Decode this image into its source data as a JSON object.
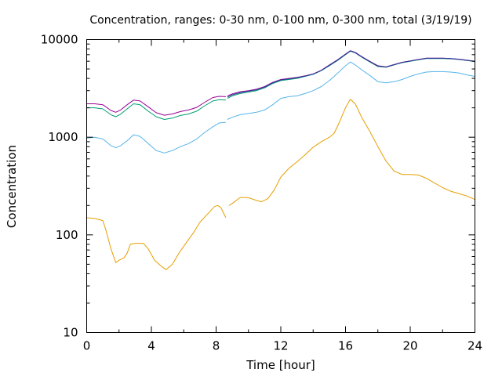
{
  "chart_data": {
    "type": "line",
    "title": "Concentration, ranges: 0-30 nm, 0-100 nm, 0-300 nm, total (3/19/19)",
    "xlabel": "Time [hour]",
    "ylabel": "Concentration",
    "xlim": [
      0,
      24
    ],
    "ylim": [
      10,
      10000
    ],
    "yscale": "log",
    "grid": false,
    "legend": "none",
    "x_ticks": [
      "0",
      "4",
      "8",
      "12",
      "16",
      "20",
      "24"
    ],
    "y_ticks": [
      "10",
      "100",
      "1000",
      "10000"
    ],
    "series": [
      {
        "color": "#e69f00",
        "segments": [
          [
            [
              0,
              150
            ],
            [
              0.5,
              147
            ],
            [
              1,
              140
            ],
            [
              1.2,
              110
            ],
            [
              1.5,
              72
            ],
            [
              1.8,
              52
            ],
            [
              2.0,
              55
            ],
            [
              2.3,
              58
            ],
            [
              2.5,
              65
            ],
            [
              2.7,
              80
            ],
            [
              3.0,
              82
            ],
            [
              3.5,
              82
            ],
            [
              3.8,
              72
            ],
            [
              4.2,
              55
            ],
            [
              4.6,
              48
            ],
            [
              4.9,
              44
            ],
            [
              5.3,
              50
            ],
            [
              5.7,
              65
            ],
            [
              6.2,
              85
            ],
            [
              6.6,
              105
            ],
            [
              7.0,
              135
            ],
            [
              7.5,
              165
            ],
            [
              7.9,
              195
            ],
            [
              8.1,
              200
            ],
            [
              8.3,
              190
            ],
            [
              8.6,
              150
            ]
          ],
          [
            [
              8.8,
              200
            ],
            [
              9.0,
              210
            ],
            [
              9.5,
              242
            ],
            [
              10.0,
              240
            ],
            [
              10.5,
              225
            ],
            [
              10.8,
              218
            ],
            [
              11.2,
              235
            ],
            [
              11.6,
              290
            ],
            [
              12.0,
              390
            ],
            [
              12.5,
              480
            ],
            [
              13.0,
              560
            ],
            [
              13.5,
              660
            ],
            [
              14.0,
              790
            ],
            [
              14.5,
              900
            ],
            [
              15.0,
              1000
            ],
            [
              15.3,
              1100
            ],
            [
              15.6,
              1400
            ],
            [
              16.0,
              2000
            ],
            [
              16.3,
              2450
            ],
            [
              16.6,
              2200
            ],
            [
              17.0,
              1600
            ],
            [
              17.5,
              1150
            ],
            [
              18.0,
              800
            ],
            [
              18.5,
              570
            ],
            [
              19.0,
              450
            ],
            [
              19.5,
              415
            ],
            [
              20.0,
              415
            ],
            [
              20.5,
              410
            ],
            [
              21.0,
              380
            ],
            [
              21.5,
              340
            ],
            [
              22.0,
              305
            ],
            [
              22.5,
              280
            ],
            [
              23.0,
              265
            ],
            [
              23.5,
              250
            ],
            [
              24.0,
              230
            ]
          ]
        ]
      },
      {
        "color": "#56b4e9",
        "segments": [
          [
            [
              0,
              980
            ],
            [
              0.5,
              1000
            ],
            [
              1,
              960
            ],
            [
              1.5,
              820
            ],
            [
              1.8,
              780
            ],
            [
              2.1,
              820
            ],
            [
              2.5,
              920
            ],
            [
              2.9,
              1060
            ],
            [
              3.3,
              1020
            ],
            [
              3.8,
              860
            ],
            [
              4.3,
              730
            ],
            [
              4.8,
              690
            ],
            [
              5.3,
              730
            ],
            [
              5.8,
              800
            ],
            [
              6.3,
              860
            ],
            [
              6.8,
              960
            ],
            [
              7.3,
              1120
            ],
            [
              7.8,
              1280
            ],
            [
              8.2,
              1400
            ],
            [
              8.6,
              1420
            ]
          ],
          [
            [
              8.7,
              1520
            ],
            [
              9.0,
              1600
            ],
            [
              9.5,
              1700
            ],
            [
              10.0,
              1750
            ],
            [
              10.5,
              1800
            ],
            [
              11.0,
              1900
            ],
            [
              11.5,
              2150
            ],
            [
              12.0,
              2500
            ],
            [
              12.5,
              2600
            ],
            [
              13.0,
              2650
            ],
            [
              13.5,
              2800
            ],
            [
              14.0,
              3000
            ],
            [
              14.5,
              3300
            ],
            [
              15.0,
              3800
            ],
            [
              15.5,
              4500
            ],
            [
              16.0,
              5400
            ],
            [
              16.3,
              5900
            ],
            [
              16.6,
              5500
            ],
            [
              17.0,
              4900
            ],
            [
              17.5,
              4300
            ],
            [
              18.0,
              3700
            ],
            [
              18.5,
              3600
            ],
            [
              19.0,
              3700
            ],
            [
              19.5,
              3900
            ],
            [
              20.0,
              4200
            ],
            [
              20.5,
              4450
            ],
            [
              21.0,
              4650
            ],
            [
              21.5,
              4700
            ],
            [
              22.0,
              4700
            ],
            [
              22.5,
              4650
            ],
            [
              23.0,
              4550
            ],
            [
              23.5,
              4350
            ],
            [
              24.0,
              4200
            ]
          ]
        ]
      },
      {
        "color": "#009e73",
        "segments": [
          [
            [
              0,
              2000
            ],
            [
              0.5,
              2000
            ],
            [
              1,
              1950
            ],
            [
              1.5,
              1700
            ],
            [
              1.8,
              1620
            ],
            [
              2.1,
              1720
            ],
            [
              2.5,
              1950
            ],
            [
              2.9,
              2200
            ],
            [
              3.3,
              2150
            ],
            [
              3.8,
              1850
            ],
            [
              4.3,
              1620
            ],
            [
              4.8,
              1520
            ],
            [
              5.3,
              1570
            ],
            [
              5.8,
              1670
            ],
            [
              6.3,
              1730
            ],
            [
              6.8,
              1850
            ],
            [
              7.3,
              2100
            ],
            [
              7.8,
              2350
            ],
            [
              8.2,
              2420
            ],
            [
              8.6,
              2400
            ]
          ],
          [
            [
              8.7,
              2500
            ],
            [
              9.0,
              2650
            ],
            [
              9.5,
              2800
            ],
            [
              10.0,
              2900
            ],
            [
              10.5,
              3000
            ],
            [
              11.0,
              3200
            ],
            [
              11.5,
              3550
            ],
            [
              12.0,
              3800
            ],
            [
              12.5,
              3900
            ],
            [
              13.0,
              4000
            ],
            [
              13.5,
              4200
            ],
            [
              14.0,
              4400
            ],
            [
              14.5,
              4800
            ],
            [
              15.0,
              5400
            ],
            [
              15.5,
              6100
            ],
            [
              16.0,
              7000
            ],
            [
              16.3,
              7600
            ],
            [
              16.6,
              7300
            ],
            [
              17.0,
              6600
            ],
            [
              17.5,
              5900
            ],
            [
              18.0,
              5300
            ],
            [
              18.5,
              5200
            ],
            [
              19.0,
              5500
            ],
            [
              19.5,
              5800
            ],
            [
              20.0,
              6000
            ],
            [
              20.5,
              6200
            ],
            [
              21.0,
              6400
            ],
            [
              21.5,
              6400
            ],
            [
              22.0,
              6400
            ],
            [
              22.5,
              6350
            ],
            [
              23.0,
              6250
            ],
            [
              23.5,
              6100
            ],
            [
              24.0,
              5950
            ]
          ]
        ]
      },
      {
        "color": "#990099",
        "segments": [
          [
            [
              0,
              2200
            ],
            [
              0.5,
              2200
            ],
            [
              1,
              2150
            ],
            [
              1.5,
              1880
            ],
            [
              1.8,
              1800
            ],
            [
              2.1,
              1900
            ],
            [
              2.5,
              2150
            ],
            [
              2.9,
              2400
            ],
            [
              3.3,
              2350
            ],
            [
              3.8,
              2050
            ],
            [
              4.3,
              1780
            ],
            [
              4.8,
              1680
            ],
            [
              5.3,
              1730
            ],
            [
              5.8,
              1830
            ],
            [
              6.3,
              1900
            ],
            [
              6.8,
              2020
            ],
            [
              7.3,
              2280
            ],
            [
              7.8,
              2550
            ],
            [
              8.2,
              2620
            ],
            [
              8.6,
              2600
            ]
          ],
          [
            [
              8.7,
              2650
            ],
            [
              9.0,
              2780
            ],
            [
              9.5,
              2920
            ],
            [
              10.0,
              3000
            ],
            [
              10.5,
              3100
            ],
            [
              11.0,
              3300
            ],
            [
              11.5,
              3650
            ],
            [
              12.0,
              3900
            ],
            [
              12.5,
              4000
            ],
            [
              13.0,
              4100
            ],
            [
              13.5,
              4250
            ],
            [
              14.0,
              4450
            ],
            [
              14.5,
              4850
            ],
            [
              15.0,
              5500
            ],
            [
              15.5,
              6200
            ],
            [
              16.0,
              7100
            ],
            [
              16.3,
              7700
            ],
            [
              16.6,
              7400
            ],
            [
              17.0,
              6700
            ],
            [
              17.5,
              6000
            ],
            [
              18.0,
              5400
            ],
            [
              18.5,
              5250
            ],
            [
              19.0,
              5550
            ],
            [
              19.5,
              5850
            ],
            [
              20.0,
              6050
            ],
            [
              20.5,
              6250
            ],
            [
              21.0,
              6450
            ],
            [
              21.5,
              6450
            ],
            [
              22.0,
              6450
            ],
            [
              22.5,
              6400
            ],
            [
              23.0,
              6300
            ],
            [
              23.5,
              6150
            ],
            [
              24.0,
              6000
            ]
          ]
        ]
      },
      {
        "color": "#2b3b99",
        "segments": [
          [
            [
              8.7,
              2580
            ],
            [
              9.0,
              2720
            ],
            [
              9.5,
              2870
            ],
            [
              10.0,
              2960
            ],
            [
              10.5,
              3060
            ],
            [
              11.0,
              3260
            ],
            [
              11.5,
              3610
            ],
            [
              12.0,
              3860
            ],
            [
              12.5,
              3960
            ],
            [
              13.0,
              4060
            ],
            [
              13.5,
              4230
            ],
            [
              14.0,
              4430
            ],
            [
              14.5,
              4830
            ],
            [
              15.0,
              5450
            ],
            [
              15.5,
              6150
            ],
            [
              16.0,
              7050
            ],
            [
              16.3,
              7650
            ],
            [
              16.6,
              7350
            ],
            [
              17.0,
              6650
            ],
            [
              17.5,
              5950
            ],
            [
              18.0,
              5350
            ],
            [
              18.5,
              5230
            ],
            [
              19.0,
              5530
            ],
            [
              19.5,
              5830
            ],
            [
              20.0,
              6030
            ],
            [
              20.5,
              6230
            ],
            [
              21.0,
              6430
            ],
            [
              21.5,
              6430
            ],
            [
              22.0,
              6430
            ],
            [
              22.5,
              6380
            ],
            [
              23.0,
              6280
            ],
            [
              23.5,
              6130
            ],
            [
              24.0,
              5980
            ]
          ]
        ]
      }
    ]
  }
}
